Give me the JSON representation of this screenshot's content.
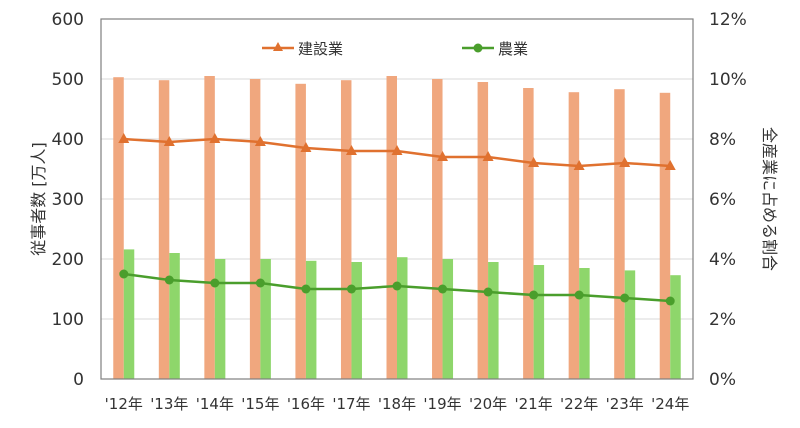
{
  "chart_data": {
    "type": "bar+line",
    "title": "",
    "categories": [
      "'12年",
      "'13年",
      "'14年",
      "'15年",
      "'16年",
      "'17年",
      "'18年",
      "'19年",
      "'20年",
      "'21年",
      "'22年",
      "'23年",
      "'24年"
    ],
    "left_axis": {
      "label": "従事者数 [万人]",
      "ticks": [
        "0",
        "100",
        "200",
        "300",
        "400",
        "500",
        "600"
      ],
      "range": [
        0,
        600
      ]
    },
    "right_axis": {
      "label": "全産業に占める割合",
      "ticks": [
        "0%",
        "2%",
        "4%",
        "6%",
        "8%",
        "10%",
        "12%"
      ],
      "range": [
        0,
        12
      ]
    },
    "bar_series": [
      {
        "name": "建設業",
        "axis": "left",
        "color": "#f0a77e",
        "values": [
          503,
          498,
          505,
          500,
          492,
          498,
          505,
          500,
          495,
          485,
          478,
          483,
          477
        ]
      },
      {
        "name": "農業",
        "axis": "left",
        "color": "#8ed66b",
        "values": [
          216,
          210,
          200,
          200,
          197,
          195,
          203,
          200,
          195,
          190,
          185,
          181,
          173
        ]
      }
    ],
    "line_series": [
      {
        "name": "建設業",
        "axis": "right",
        "color": "#e0712f",
        "marker": "triangle",
        "values": [
          8.0,
          7.9,
          8.0,
          7.9,
          7.7,
          7.6,
          7.6,
          7.4,
          7.4,
          7.2,
          7.1,
          7.2,
          7.1
        ]
      },
      {
        "name": "農業",
        "axis": "right",
        "color": "#4a9e2c",
        "marker": "circle",
        "values": [
          3.5,
          3.3,
          3.2,
          3.2,
          3.0,
          3.0,
          3.1,
          3.0,
          2.9,
          2.8,
          2.8,
          2.7,
          2.6
        ]
      }
    ],
    "legend": [
      {
        "label": "建設業",
        "color": "#e0712f",
        "marker": "triangle"
      },
      {
        "label": "農業",
        "color": "#4a9e2c",
        "marker": "circle"
      }
    ],
    "legend_position": "top-inside",
    "grid": true
  }
}
